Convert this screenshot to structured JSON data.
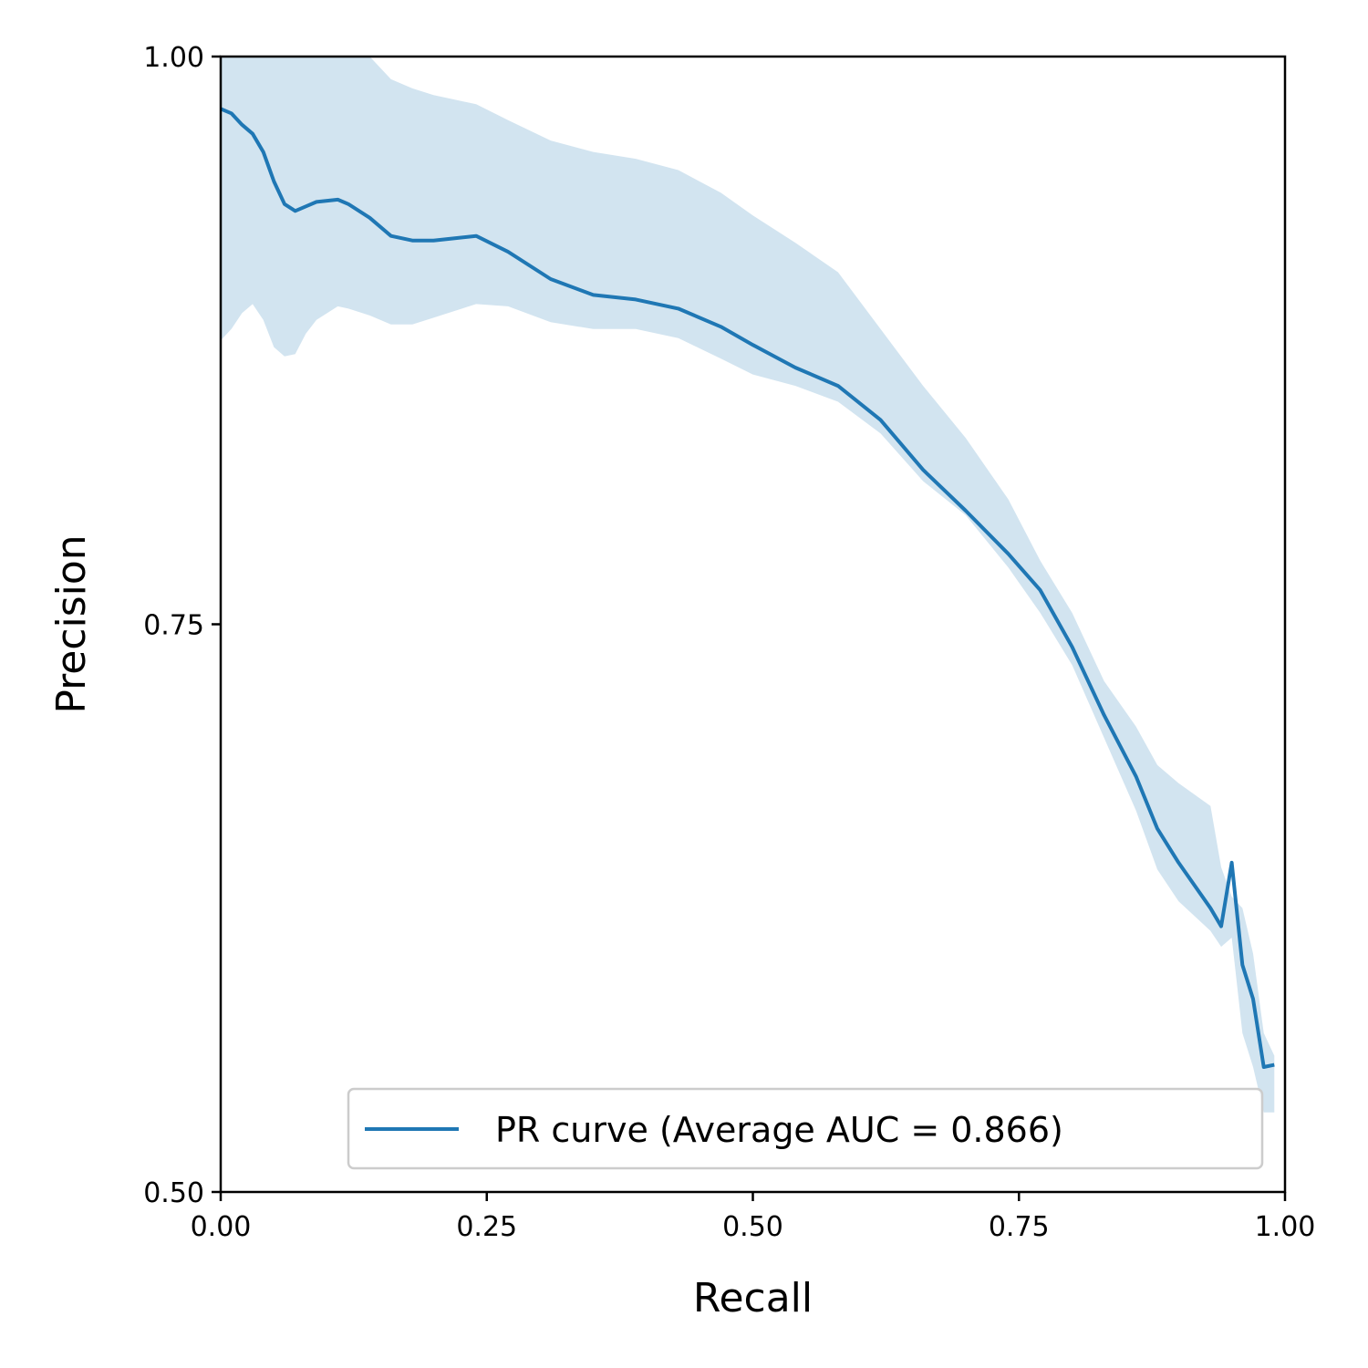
{
  "chart_data": {
    "type": "line",
    "title": "",
    "xlabel": "Recall",
    "ylabel": "Precision",
    "xlim": [
      0.0,
      1.0
    ],
    "ylim": [
      0.5,
      1.0
    ],
    "x_ticks": [
      "0.00",
      "0.25",
      "0.50",
      "0.75",
      "1.00"
    ],
    "y_ticks": [
      "0.50",
      "0.75",
      "1.00"
    ],
    "grid": false,
    "legend": {
      "position": "lower-right",
      "label": "PR curve (Average AUC = 0.866)"
    },
    "colors": {
      "line": "#1f77b4",
      "band": "#1f77b4"
    },
    "series": [
      {
        "name": "PR curve (Average AUC = 0.866)",
        "x": [
          0.0,
          0.01,
          0.02,
          0.03,
          0.04,
          0.05,
          0.06,
          0.07,
          0.08,
          0.09,
          0.11,
          0.12,
          0.14,
          0.16,
          0.18,
          0.2,
          0.22,
          0.24,
          0.27,
          0.31,
          0.35,
          0.39,
          0.43,
          0.47,
          0.5,
          0.54,
          0.58,
          0.62,
          0.66,
          0.7,
          0.74,
          0.77,
          0.8,
          0.83,
          0.86,
          0.88,
          0.9,
          0.93,
          0.94,
          0.95,
          0.96,
          0.97,
          0.98,
          0.99
        ],
        "y": [
          0.977,
          0.975,
          0.97,
          0.966,
          0.958,
          0.945,
          0.935,
          0.932,
          0.934,
          0.936,
          0.937,
          0.935,
          0.929,
          0.921,
          0.919,
          0.919,
          0.92,
          0.921,
          0.914,
          0.902,
          0.895,
          0.893,
          0.889,
          0.881,
          0.873,
          0.863,
          0.855,
          0.84,
          0.818,
          0.8,
          0.781,
          0.765,
          0.74,
          0.71,
          0.683,
          0.66,
          0.645,
          0.625,
          0.617,
          0.645,
          0.6,
          0.585,
          0.555,
          0.556
        ],
        "lower": [
          0.875,
          0.88,
          0.887,
          0.891,
          0.884,
          0.872,
          0.868,
          0.869,
          0.878,
          0.884,
          0.89,
          0.889,
          0.886,
          0.882,
          0.882,
          0.885,
          0.888,
          0.891,
          0.89,
          0.883,
          0.88,
          0.88,
          0.876,
          0.867,
          0.86,
          0.855,
          0.848,
          0.834,
          0.813,
          0.798,
          0.775,
          0.755,
          0.732,
          0.7,
          0.668,
          0.642,
          0.628,
          0.615,
          0.608,
          0.612,
          0.57,
          0.555,
          0.535,
          0.535
        ],
        "upper": [
          1.0,
          1.0,
          1.0,
          1.0,
          1.0,
          1.0,
          1.0,
          1.0,
          1.0,
          1.0,
          1.0,
          1.0,
          1.0,
          0.99,
          0.986,
          0.983,
          0.981,
          0.979,
          0.972,
          0.963,
          0.958,
          0.955,
          0.95,
          0.94,
          0.93,
          0.918,
          0.905,
          0.88,
          0.855,
          0.832,
          0.805,
          0.778,
          0.755,
          0.725,
          0.705,
          0.688,
          0.68,
          0.67,
          0.643,
          0.63,
          0.625,
          0.605,
          0.57,
          0.56
        ]
      }
    ]
  }
}
